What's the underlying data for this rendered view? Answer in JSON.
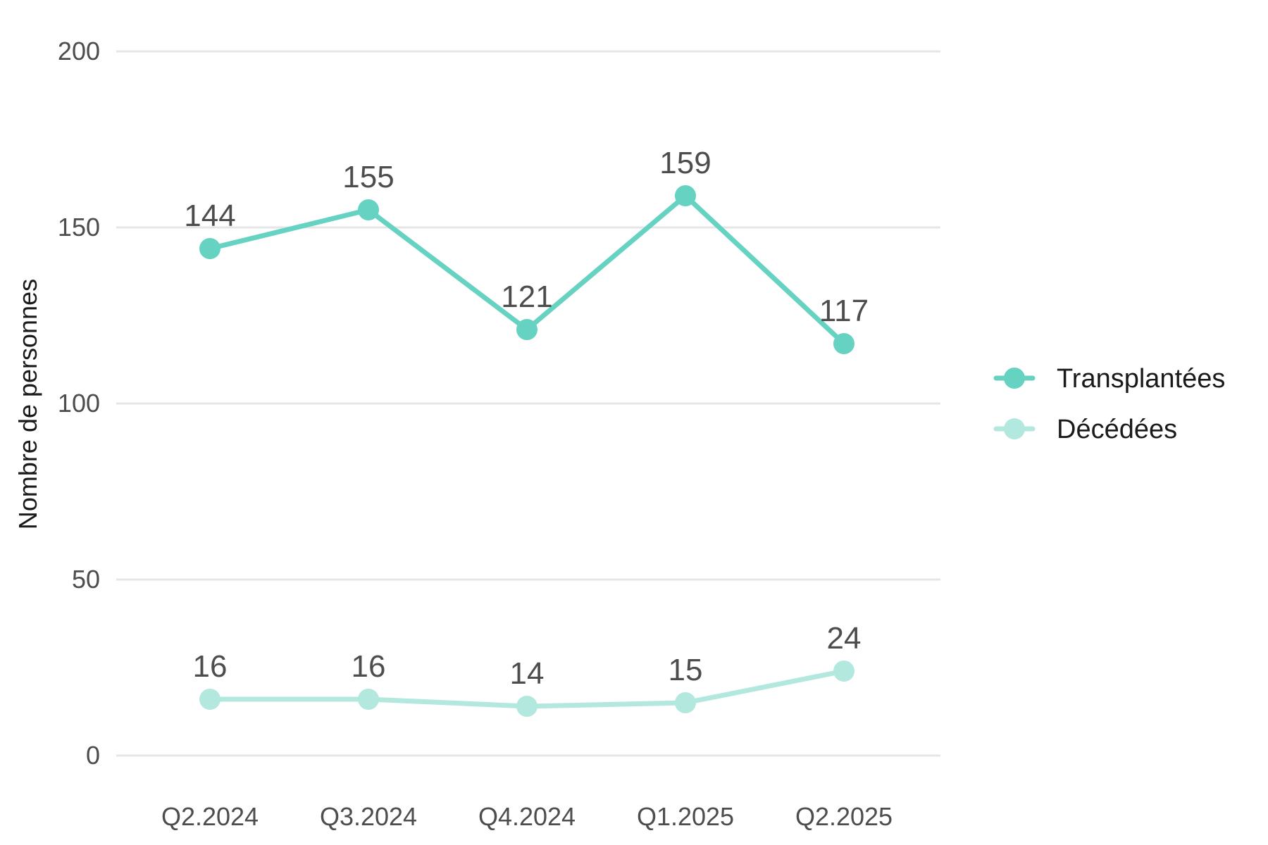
{
  "chart_data": {
    "type": "line",
    "categories": [
      "Q2.2024",
      "Q3.2024",
      "Q4.2024",
      "Q1.2025",
      "Q2.2025"
    ],
    "series": [
      {
        "name": "Transplantées",
        "values": [
          144,
          155,
          121,
          159,
          117
        ],
        "color": "#66d2c2"
      },
      {
        "name": "Décédées",
        "values": [
          16,
          16,
          14,
          15,
          24
        ],
        "color": "#b3e8df"
      }
    ],
    "ylabel": "Nombre de personnes",
    "xlabel": "",
    "ylim": [
      0,
      200
    ],
    "yticks": [
      0,
      50,
      100,
      150,
      200
    ],
    "grid": "horizontal",
    "legend_position": "right"
  }
}
